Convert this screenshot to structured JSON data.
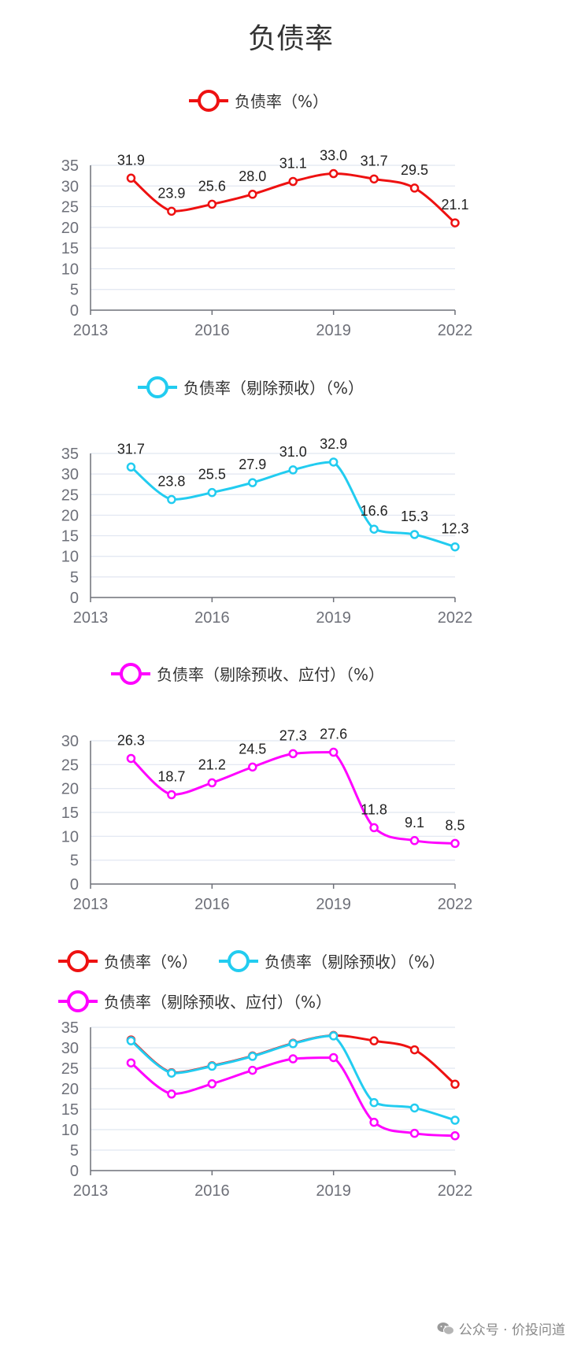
{
  "page": {
    "title": "负债率"
  },
  "watermark": {
    "text": "公众号 · 价投问道"
  },
  "series_styles": {
    "s1": {
      "name": "负债率（%）",
      "color": "#ee1111"
    },
    "s2": {
      "name": "负债率（剔除预收）（%）",
      "color": "#22ccf0"
    },
    "s3": {
      "name": "负债率（剔除预收、应付）（%）",
      "color": "#ff00ff"
    }
  },
  "chart_data": [
    {
      "type": "line",
      "smooth": true,
      "legend": [
        "负债率（%）"
      ],
      "x": [
        2014,
        2015,
        2016,
        2017,
        2018,
        2019,
        2020,
        2021,
        2022
      ],
      "x_ticks": [
        "2013",
        "2016",
        "2019",
        "2022"
      ],
      "xlim": [
        2013,
        2022
      ],
      "y_ticks": [
        "0",
        "5",
        "10",
        "15",
        "20",
        "25",
        "30",
        "35"
      ],
      "ylim": [
        0,
        35
      ],
      "series": [
        {
          "key": "s1",
          "values": [
            31.9,
            23.9,
            25.6,
            28.0,
            31.1,
            33.0,
            31.7,
            29.5,
            21.1
          ],
          "labels": [
            "31.9",
            "23.9",
            "25.6",
            "28.0",
            "31.1",
            "33.0",
            "31.7",
            "29.5",
            "21.1"
          ]
        }
      ]
    },
    {
      "type": "line",
      "smooth": true,
      "legend": [
        "负债率（剔除预收）（%）"
      ],
      "x": [
        2014,
        2015,
        2016,
        2017,
        2018,
        2019,
        2020,
        2021,
        2022
      ],
      "x_ticks": [
        "2013",
        "2016",
        "2019",
        "2022"
      ],
      "xlim": [
        2013,
        2022
      ],
      "y_ticks": [
        "0",
        "5",
        "10",
        "15",
        "20",
        "25",
        "30",
        "35"
      ],
      "ylim": [
        0,
        35
      ],
      "series": [
        {
          "key": "s2",
          "values": [
            31.7,
            23.8,
            25.5,
            27.9,
            31.0,
            32.9,
            16.6,
            15.3,
            12.3
          ],
          "labels": [
            "31.7",
            "23.8",
            "25.5",
            "27.9",
            "31.0",
            "32.9",
            "16.6",
            "15.3",
            "12.3"
          ]
        }
      ]
    },
    {
      "type": "line",
      "smooth": true,
      "legend": [
        "负债率（剔除预收、应付）（%）"
      ],
      "x": [
        2014,
        2015,
        2016,
        2017,
        2018,
        2019,
        2020,
        2021,
        2022
      ],
      "x_ticks": [
        "2013",
        "2016",
        "2019",
        "2022"
      ],
      "xlim": [
        2013,
        2022
      ],
      "y_ticks": [
        "0",
        "5",
        "10",
        "15",
        "20",
        "25",
        "30"
      ],
      "ylim": [
        0,
        30
      ],
      "series": [
        {
          "key": "s3",
          "values": [
            26.3,
            18.7,
            21.2,
            24.5,
            27.3,
            27.6,
            11.8,
            9.1,
            8.5
          ],
          "labels": [
            "26.3",
            "18.7",
            "21.2",
            "24.5",
            "27.3",
            "27.6",
            "11.8",
            "9.1",
            "8.5"
          ]
        }
      ]
    },
    {
      "type": "line",
      "smooth": true,
      "legend": [
        "负债率（%）",
        "负债率（剔除预收）（%）",
        "负债率（剔除预收、应付）（%）"
      ],
      "x": [
        2014,
        2015,
        2016,
        2017,
        2018,
        2019,
        2020,
        2021,
        2022
      ],
      "x_ticks": [
        "2013",
        "2016",
        "2019",
        "2022"
      ],
      "xlim": [
        2013,
        2022
      ],
      "y_ticks": [
        "0",
        "5",
        "10",
        "15",
        "20",
        "25",
        "30",
        "35"
      ],
      "ylim": [
        0,
        35
      ],
      "series": [
        {
          "key": "s1",
          "values": [
            31.9,
            23.9,
            25.6,
            28.0,
            31.1,
            33.0,
            31.7,
            29.5,
            21.1
          ]
        },
        {
          "key": "s2",
          "values": [
            31.7,
            23.8,
            25.5,
            27.9,
            31.0,
            32.9,
            16.6,
            15.3,
            12.3
          ]
        },
        {
          "key": "s3",
          "values": [
            26.3,
            18.7,
            21.2,
            24.5,
            27.3,
            27.6,
            11.8,
            9.1,
            8.5
          ]
        }
      ]
    }
  ]
}
